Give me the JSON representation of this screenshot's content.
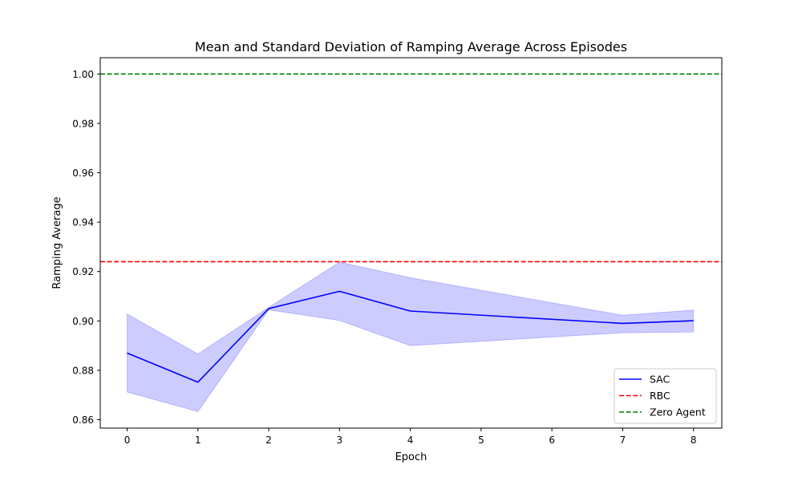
{
  "chart_data": {
    "type": "line",
    "title": "Mean and Standard Deviation of Ramping Average Across Episodes",
    "xlabel": "Epoch",
    "ylabel": "Ramping Average",
    "xlim": [
      -0.38,
      8.4
    ],
    "ylim": [
      0.8566,
      1.0066
    ],
    "x_ticks": [
      0,
      1,
      2,
      3,
      4,
      5,
      6,
      7,
      8
    ],
    "y_ticks": [
      0.86,
      0.88,
      0.9,
      0.92,
      0.94,
      0.96,
      0.98,
      1.0
    ],
    "y_tick_labels": [
      "0.86",
      "0.88",
      "0.90",
      "0.92",
      "0.94",
      "0.96",
      "0.98",
      "1.00"
    ],
    "grid": false,
    "legend_position": "lower-right",
    "series": [
      {
        "name": "SAC",
        "style": "solid",
        "color": "#0000ff",
        "x": [
          0,
          1,
          2,
          3,
          4,
          7,
          8
        ],
        "values": [
          0.887,
          0.8752,
          0.905,
          0.912,
          0.904,
          0.899,
          0.9001
        ],
        "band_lower": [
          0.8712,
          0.8633,
          0.9045,
          0.9002,
          0.89,
          0.8952,
          0.8955
        ],
        "band_upper": [
          0.9028,
          0.8866,
          0.9055,
          0.9238,
          0.9175,
          0.9023,
          0.9044
        ],
        "band_color": "#0000ff"
      },
      {
        "name": "RBC",
        "style": "dashed",
        "color": "#ff0000",
        "hline": 0.924
      },
      {
        "name": "Zero Agent",
        "style": "dashed",
        "color": "#008000",
        "hline": 1.0
      }
    ]
  }
}
